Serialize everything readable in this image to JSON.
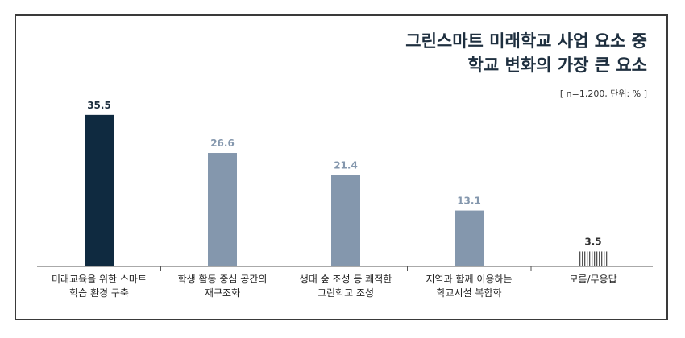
{
  "chart_data": {
    "type": "bar",
    "title_lines": [
      "그린스마트 미래학교 사업 요소 중",
      "학교 변화의 가장 큰 요소"
    ],
    "note": "[ n=1,200, 단위: % ]",
    "categories": [
      [
        "미래교육을 위한 스마트",
        "학습 환경 구축"
      ],
      [
        "학생 활동 중심 공간의",
        "재구조화"
      ],
      [
        "생태 숲 조성 등 쾌적한",
        "그린학교 조성"
      ],
      [
        "지역과 함께 이용하는",
        "학교시설 복합화"
      ],
      [
        "모름/무응답"
      ]
    ],
    "values": [
      35.5,
      26.6,
      21.4,
      13.1,
      3.5
    ],
    "value_labels": [
      "35.5",
      "26.6",
      "21.4",
      "13.1",
      "3.5"
    ],
    "ylim": [
      0,
      40
    ],
    "grid": false,
    "colors": {
      "highlight": "#0f2a40",
      "normal": "#8497ad",
      "label_highlight": "#1e2f3f",
      "label_normal": "#8497ad",
      "label_na": "#333333",
      "axis": "#555555"
    }
  }
}
